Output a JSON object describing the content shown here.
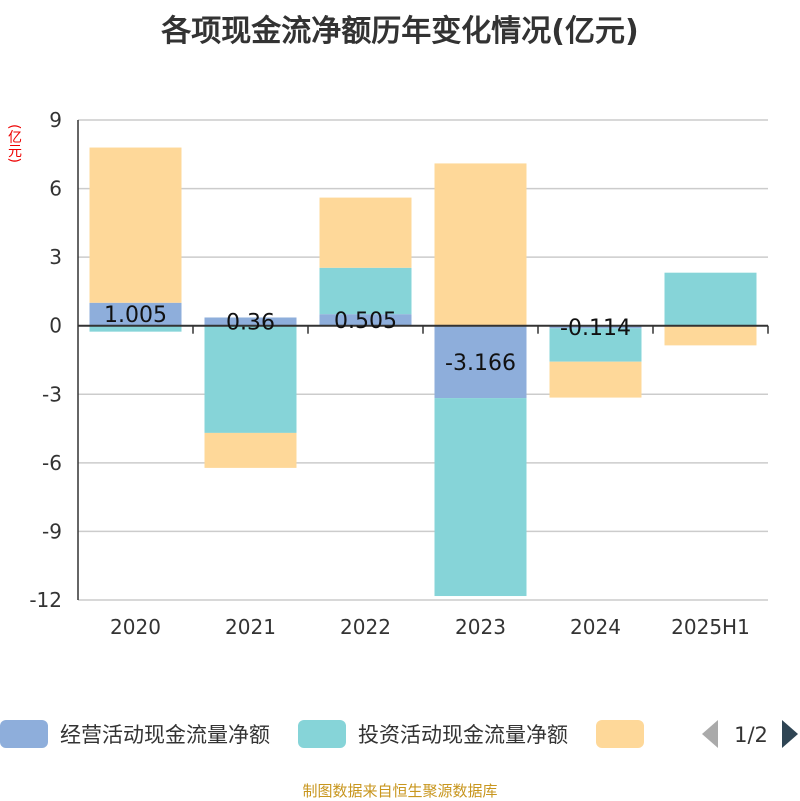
{
  "chart_data": {
    "type": "bar",
    "stacked": true,
    "title": "各项现金流净额历年变化情况(亿元)",
    "ylabel": "(亿元)",
    "categories": [
      "2020",
      "2021",
      "2022",
      "2023",
      "2024",
      "2025H1"
    ],
    "ylim": [
      -12,
      9
    ],
    "yticks": [
      9,
      6,
      3,
      0,
      -3,
      -6,
      -9,
      -12
    ],
    "grid": true,
    "legend_position": "bottom",
    "series": [
      {
        "name": "经营活动现金流量净额",
        "color": "#8eaedb",
        "values": [
          1.005,
          0.36,
          0.505,
          -3.166,
          -0.114,
          -0.03
        ],
        "labels": [
          "1.005",
          "0.36",
          "0.505",
          "-3.166",
          "-0.114",
          ""
        ]
      },
      {
        "name": "投资活动现金流量净额",
        "color": "#86d4d8",
        "values": [
          -0.26,
          -4.69,
          2.03,
          -8.66,
          -1.46,
          2.32
        ]
      },
      {
        "color": "#fed899",
        "values": [
          6.79,
          -1.53,
          3.07,
          7.1,
          -1.57,
          -0.83
        ]
      }
    ],
    "legend_pager": "1/2"
  },
  "source": "制图数据来自恒生聚源数据库"
}
